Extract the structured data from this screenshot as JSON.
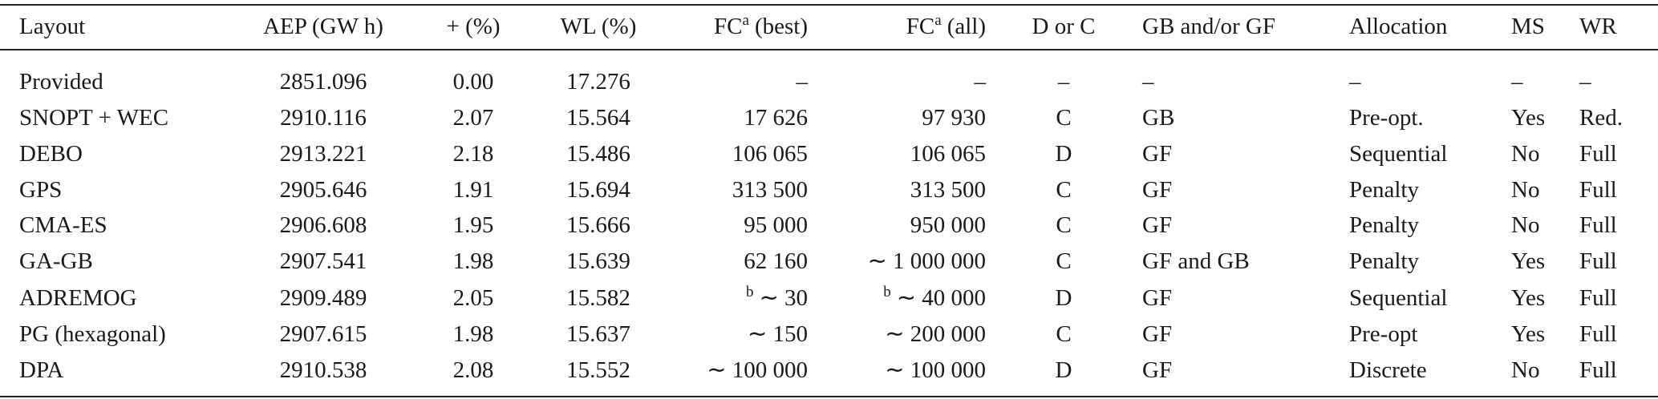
{
  "table": {
    "header": [
      "Layout",
      "AEP (GW h)",
      "+ (%)",
      "WL (%)",
      {
        "base": "FC",
        "sup": "a",
        "suffix": "(best)"
      },
      {
        "base": "FC",
        "sup": "a",
        "suffix": "(all)"
      },
      "D or C",
      "GB and/or GF",
      "Allocation",
      "MS",
      "WR"
    ],
    "rows": [
      [
        "Provided",
        "2851.096",
        "0.00",
        "17.276",
        "–",
        "–",
        "–",
        "–",
        "–",
        "–",
        "–"
      ],
      [
        "SNOPT + WEC",
        "2910.116",
        "2.07",
        "15.564",
        "17 626",
        "97 930",
        "C",
        "GB",
        "Pre-opt.",
        "Yes",
        "Red."
      ],
      [
        "DEBO",
        "2913.221",
        "2.18",
        "15.486",
        "106 065",
        "106 065",
        "D",
        "GF",
        "Sequential",
        "No",
        "Full"
      ],
      [
        "GPS",
        "2905.646",
        "1.91",
        "15.694",
        "313 500",
        "313 500",
        "C",
        "GF",
        "Penalty",
        "No",
        "Full"
      ],
      [
        "CMA-ES",
        "2906.608",
        "1.95",
        "15.666",
        "95 000",
        "950 000",
        "C",
        "GF",
        "Penalty",
        "No",
        "Full"
      ],
      [
        "GA-GB",
        "2907.541",
        "1.98",
        "15.639",
        "62 160",
        "∼ 1 000 000",
        "C",
        "GF and GB",
        "Penalty",
        "Yes",
        "Full"
      ],
      [
        "ADREMOG",
        "2909.489",
        "2.05",
        "15.582",
        {
          "sup": "b",
          "text": "∼ 30"
        },
        {
          "sup": "b",
          "text": "∼ 40 000"
        },
        "D",
        "GF",
        "Sequential",
        "Yes",
        "Full"
      ],
      [
        "PG (hexagonal)",
        "2907.615",
        "1.98",
        "15.637",
        "∼ 150",
        "∼ 200 000",
        "C",
        "GF",
        "Pre-opt",
        "Yes",
        "Full"
      ],
      [
        "DPA",
        "2910.538",
        "2.08",
        "15.552",
        "∼ 100 000",
        "∼ 100 000",
        "D",
        "GF",
        "Discrete",
        "No",
        "Full"
      ]
    ]
  }
}
